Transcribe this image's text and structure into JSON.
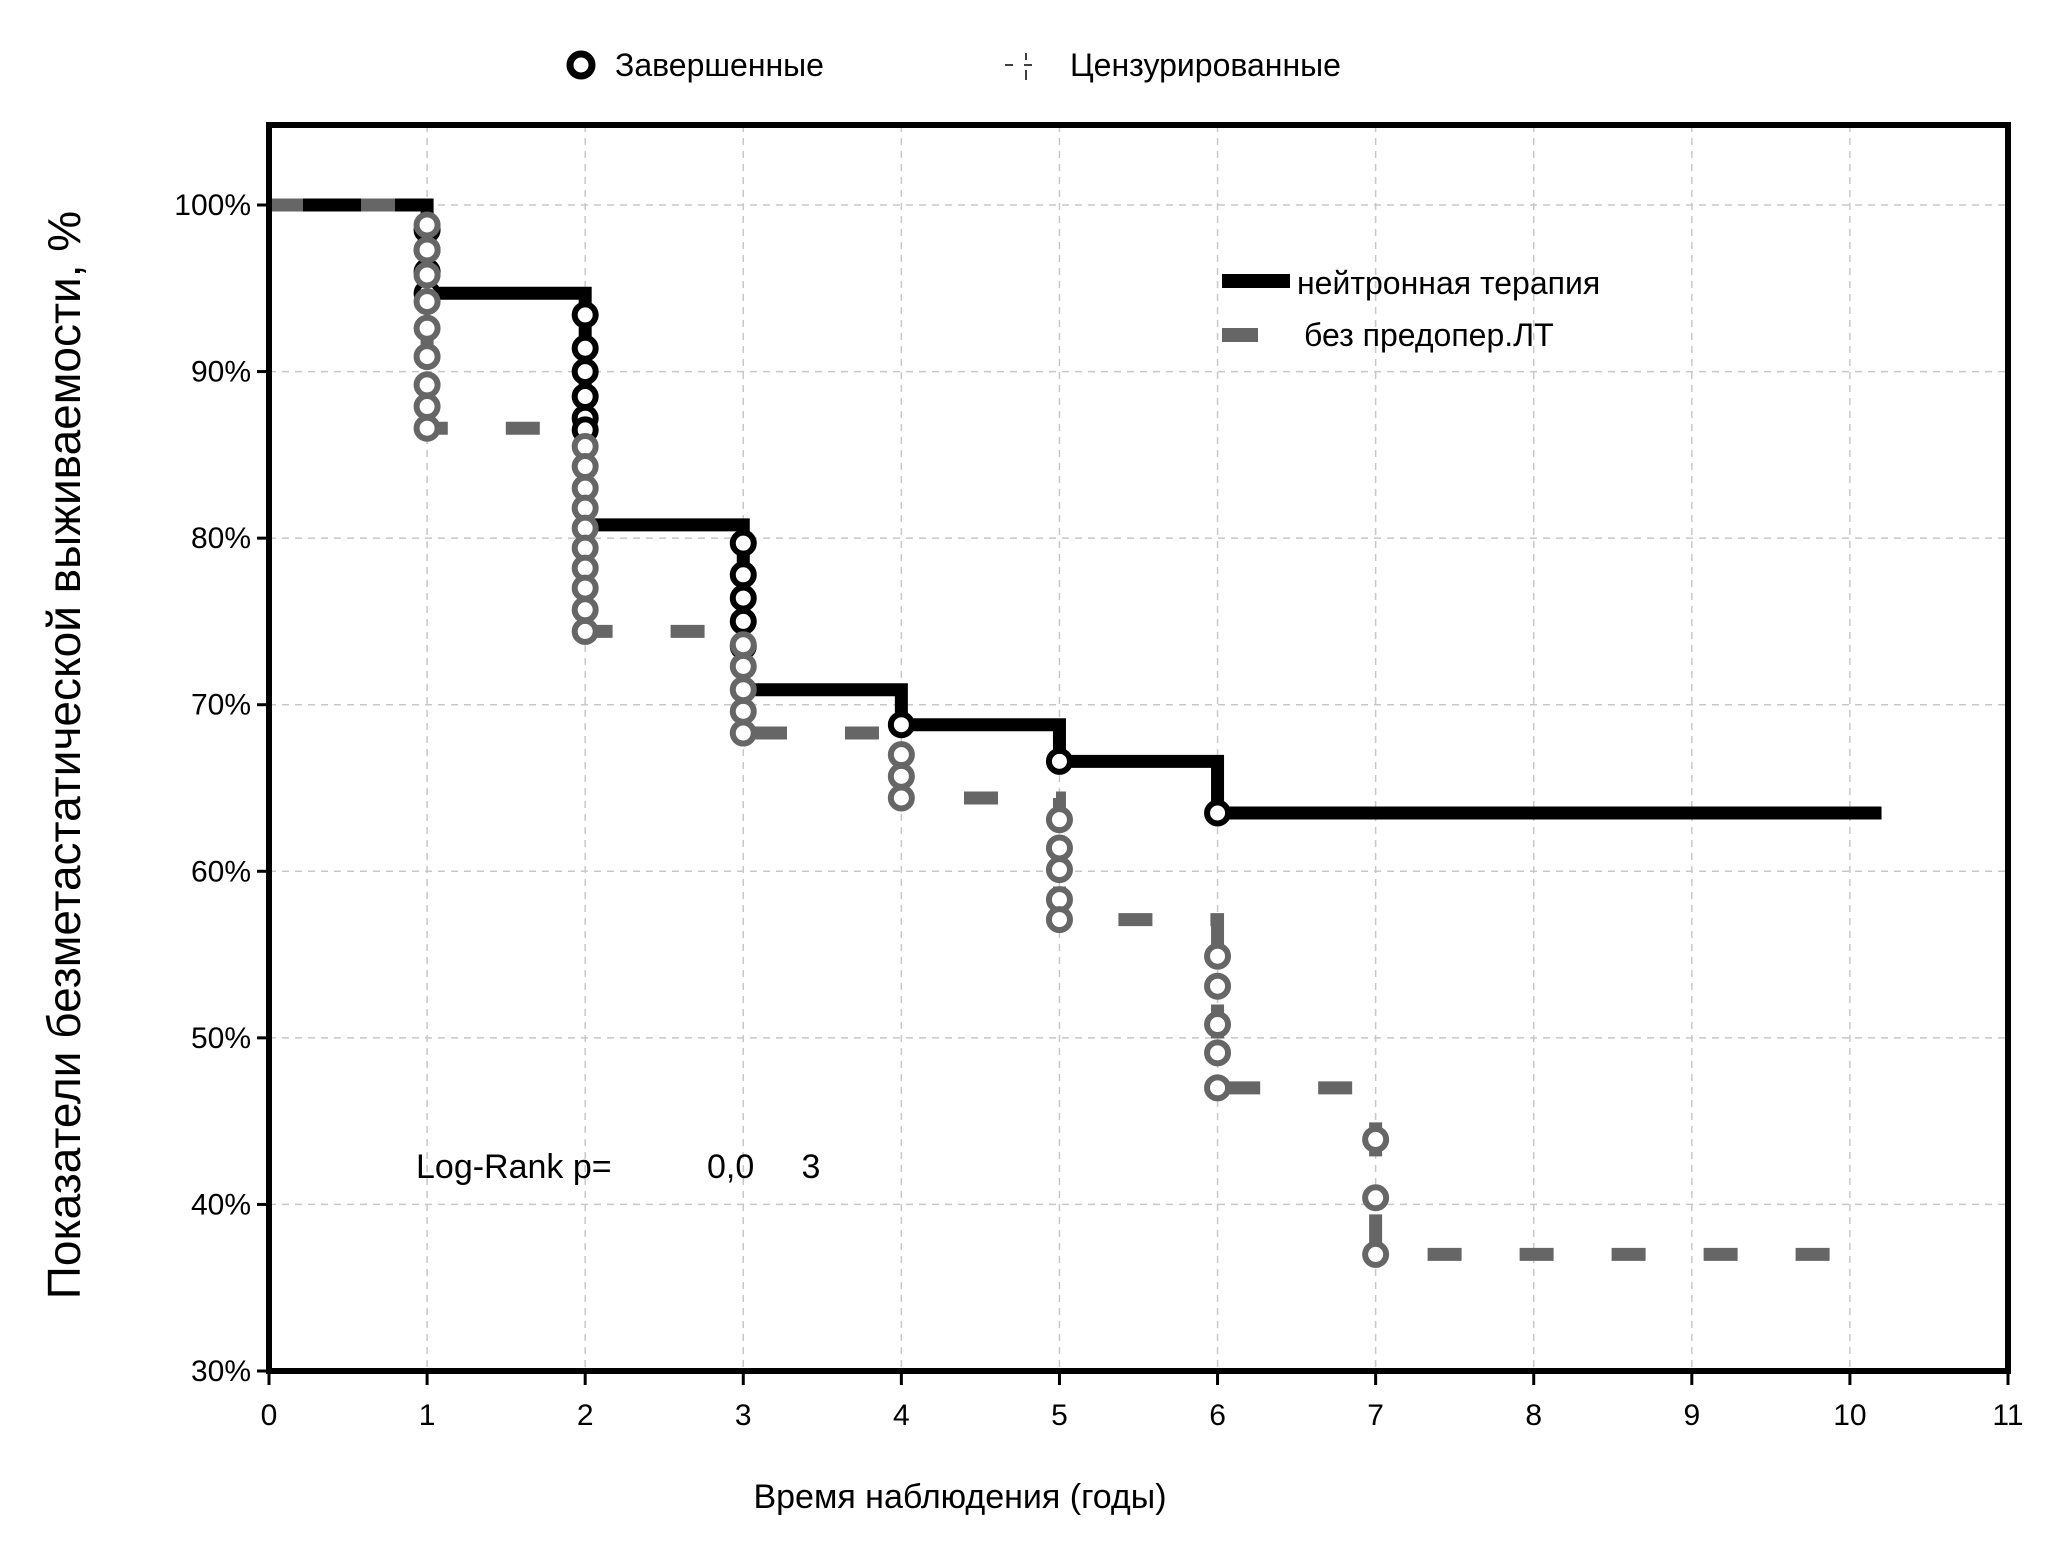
{
  "chart_data": {
    "type": "line",
    "subtype": "kaplan-meier step",
    "title": "",
    "xlabel": "Время наблюдения (годы)",
    "ylabel": "Показатели безметастатической выживаемости, %",
    "xlim": [
      0,
      11
    ],
    "ylim": [
      30,
      100
    ],
    "x_ticks": [
      "0",
      "1",
      "2",
      "3",
      "4",
      "5",
      "6",
      "7",
      "8",
      "9",
      "10",
      "11"
    ],
    "y_ticks": [
      "30%",
      "40%",
      "50%",
      "60%",
      "70%",
      "80%",
      "90%",
      "100%"
    ],
    "grid": true,
    "marker_legend": {
      "completed": "Завершенные",
      "censored": "Цензурированные",
      "placement": "top"
    },
    "series_legend_placement": "top-right",
    "series": [
      {
        "name": "нейтронная терапия",
        "color": "#000000",
        "style": "solid",
        "steps": [
          [
            0,
            100
          ],
          [
            1,
            94.7
          ],
          [
            2,
            80.8
          ],
          [
            3,
            70.9
          ],
          [
            4,
            68.8
          ],
          [
            5,
            66.6
          ],
          [
            6,
            63.5
          ],
          [
            10.2,
            63.5
          ]
        ],
        "completed_events": [
          [
            1,
            98.5
          ],
          [
            1,
            97.3
          ],
          [
            1,
            96
          ],
          [
            1,
            94.7
          ],
          [
            2,
            93.4
          ],
          [
            2,
            91.4
          ],
          [
            2,
            90
          ],
          [
            2,
            88.5
          ],
          [
            2,
            87.2
          ],
          [
            2,
            86.5
          ],
          [
            3,
            79.7
          ],
          [
            3,
            77.8
          ],
          [
            3,
            76.4
          ],
          [
            3,
            75
          ],
          [
            3,
            73.5
          ],
          [
            4,
            68.8
          ],
          [
            5,
            66.6
          ],
          [
            6,
            63.5
          ]
        ]
      },
      {
        "name": "без предопер.ЛТ",
        "color": "#666666",
        "style": "dashed",
        "steps": [
          [
            0,
            100
          ],
          [
            1,
            86.6
          ],
          [
            2,
            74.4
          ],
          [
            3,
            68.3
          ],
          [
            4,
            64.4
          ],
          [
            5,
            57.1
          ],
          [
            6,
            47
          ],
          [
            7,
            37
          ],
          [
            10.2,
            37
          ]
        ],
        "completed_events": [
          [
            1,
            98.8
          ],
          [
            1,
            97.3
          ],
          [
            1,
            95.8
          ],
          [
            1,
            94.2
          ],
          [
            1,
            92.6
          ],
          [
            1,
            90.9
          ],
          [
            1,
            89.2
          ],
          [
            1,
            87.9
          ],
          [
            1,
            86.6
          ],
          [
            2,
            85.5
          ],
          [
            2,
            84.3
          ],
          [
            2,
            83
          ],
          [
            2,
            81.8
          ],
          [
            2,
            80.6
          ],
          [
            2,
            79.4
          ],
          [
            2,
            78.2
          ],
          [
            2,
            77
          ],
          [
            2,
            75.7
          ],
          [
            2,
            74.4
          ],
          [
            3,
            73.6
          ],
          [
            3,
            72.3
          ],
          [
            3,
            70.9
          ],
          [
            3,
            69.6
          ],
          [
            3,
            68.3
          ],
          [
            4,
            67
          ],
          [
            4,
            65.7
          ],
          [
            4,
            64.4
          ],
          [
            5,
            63.1
          ],
          [
            5,
            61.4
          ],
          [
            5,
            60.1
          ],
          [
            5,
            58.3
          ],
          [
            5,
            57.1
          ],
          [
            6,
            54.9
          ],
          [
            6,
            53.1
          ],
          [
            6,
            50.8
          ],
          [
            6,
            49.1
          ],
          [
            6,
            47
          ],
          [
            7,
            43.9
          ],
          [
            7,
            40.4
          ],
          [
            7,
            37
          ]
        ]
      }
    ],
    "annotation": {
      "label": "Log-Rank p=",
      "value": "0,0     3"
    }
  },
  "colors": {
    "series1": "#000000",
    "series2": "#666666",
    "grid": "#c8c8c8",
    "frame": "#000000"
  }
}
